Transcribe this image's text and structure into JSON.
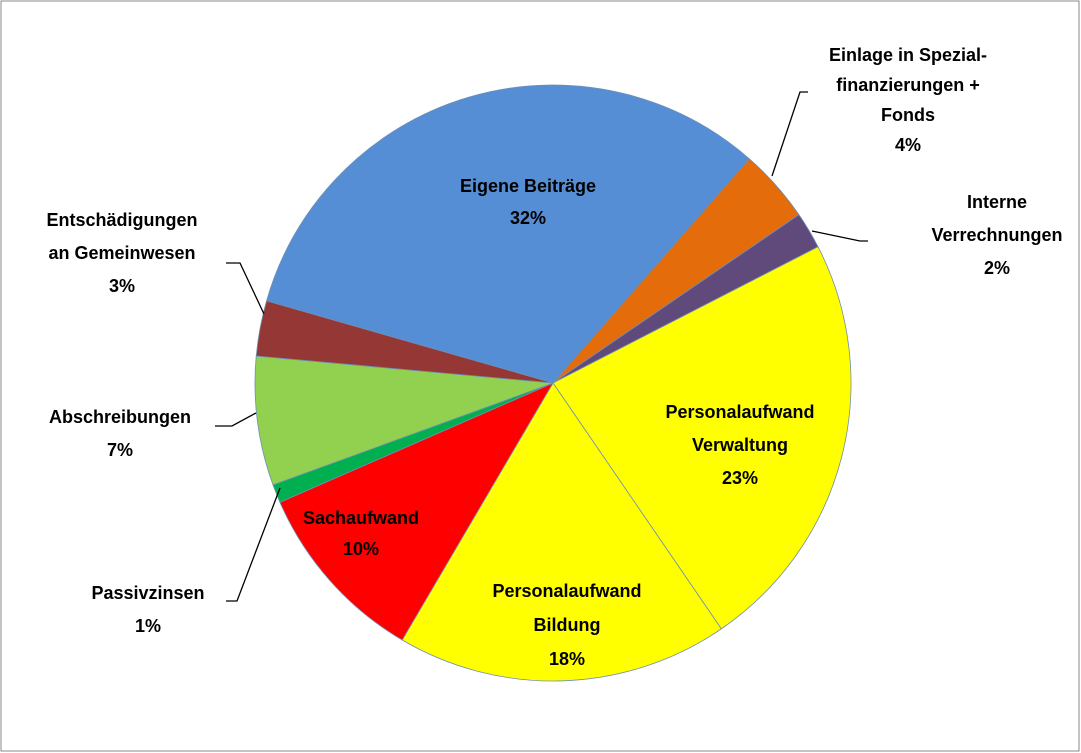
{
  "chart_data": {
    "type": "pie",
    "categories": [
      [
        "Eigene Beiträge"
      ],
      [
        "Einlage in Spezial-",
        "finanzierungen +",
        "Fonds"
      ],
      [
        "Interne",
        "Verrechnungen"
      ],
      [
        "Personalaufwand",
        "Verwaltung"
      ],
      [
        "Personalaufwand",
        "Bildung"
      ],
      [
        "Sachaufwand"
      ],
      [
        "Passivzinsen"
      ],
      [
        "Abschreibungen"
      ],
      [
        "Entschädigungen",
        "an Gemeinwesen"
      ]
    ],
    "values": [
      32,
      4,
      2,
      23,
      18,
      10,
      1,
      7,
      3
    ],
    "value_labels": [
      "32%",
      "4%",
      "2%",
      "23%",
      "18%",
      "10%",
      "1%",
      "7%",
      "3%"
    ],
    "colors": [
      "#558ed5",
      "#e46c0a",
      "#604a7b",
      "#ffff00",
      "#ffff00",
      "#ff0000",
      "#00b050",
      "#92d050",
      "#953735"
    ]
  }
}
